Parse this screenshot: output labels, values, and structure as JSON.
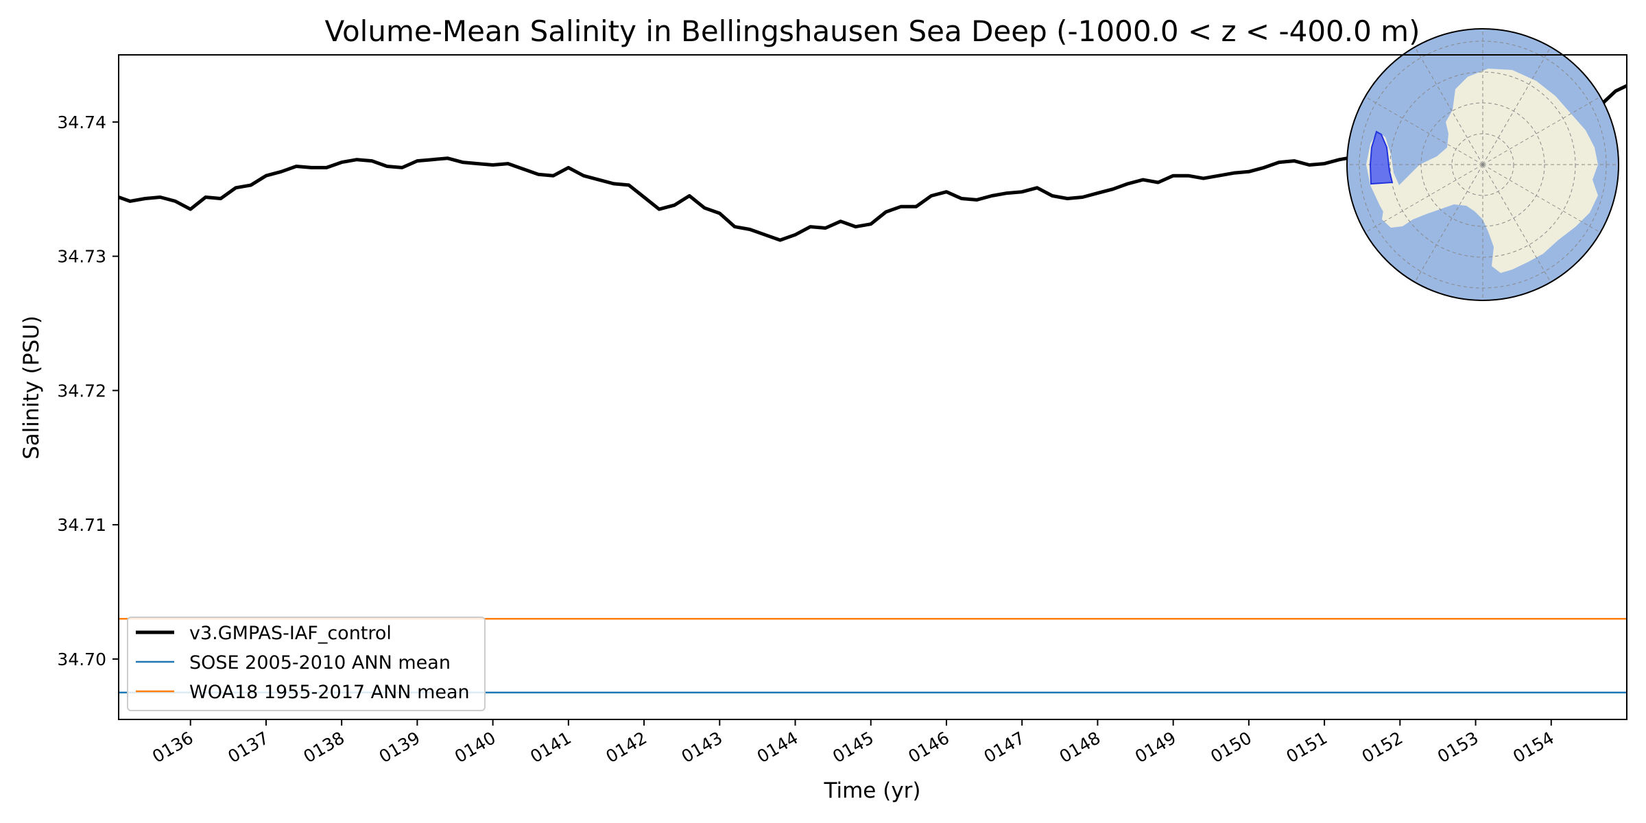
{
  "chart_data": {
    "type": "line",
    "title": "Volume-Mean Salinity in Bellingshausen Sea Deep (-1000.0 < z < -400.0 m)",
    "xlabel": "Time (yr)",
    "ylabel": "Salinity (PSU)",
    "xlim": [
      135.05,
      155.0
    ],
    "ylim": [
      34.6955,
      34.745
    ],
    "x_ticks": [
      136,
      137,
      138,
      139,
      140,
      141,
      142,
      143,
      144,
      145,
      146,
      147,
      148,
      149,
      150,
      151,
      152,
      153,
      154
    ],
    "x_tick_labels": [
      "0136",
      "0137",
      "0138",
      "0139",
      "0140",
      "0141",
      "0142",
      "0143",
      "0144",
      "0145",
      "0146",
      "0147",
      "0148",
      "0149",
      "0150",
      "0151",
      "0152",
      "0153",
      "0154"
    ],
    "y_ticks": [
      34.7,
      34.71,
      34.72,
      34.73,
      34.74
    ],
    "y_tick_labels": [
      "34.70",
      "34.71",
      "34.72",
      "34.73",
      "34.74"
    ],
    "grid": false,
    "legend_position": "bottom-left",
    "series": [
      {
        "name": "v3.GMPAS-IAF_control",
        "color": "#000000",
        "x": [
          135.05,
          135.2,
          135.4,
          135.6,
          135.8,
          136.0,
          136.2,
          136.4,
          136.6,
          136.8,
          137.0,
          137.2,
          137.4,
          137.6,
          137.8,
          138.0,
          138.2,
          138.4,
          138.6,
          138.8,
          139.0,
          139.2,
          139.4,
          139.6,
          139.8,
          140.0,
          140.2,
          140.4,
          140.6,
          140.8,
          141.0,
          141.2,
          141.4,
          141.6,
          141.8,
          142.0,
          142.2,
          142.4,
          142.6,
          142.8,
          143.0,
          143.2,
          143.4,
          143.6,
          143.8,
          144.0,
          144.2,
          144.4,
          144.6,
          144.8,
          145.0,
          145.2,
          145.4,
          145.6,
          145.8,
          146.0,
          146.2,
          146.4,
          146.6,
          146.8,
          147.0,
          147.2,
          147.4,
          147.6,
          147.8,
          148.0,
          148.2,
          148.4,
          148.6,
          148.8,
          149.0,
          149.2,
          149.4,
          149.6,
          149.8,
          150.0,
          150.2,
          150.4,
          150.6,
          150.8,
          151.0,
          151.2,
          151.4
        ],
        "values": [
          34.7344,
          34.7341,
          34.7343,
          34.7344,
          34.7341,
          34.7335,
          34.7344,
          34.7343,
          34.7351,
          34.7353,
          34.736,
          34.7363,
          34.7367,
          34.7366,
          34.7366,
          34.737,
          34.7372,
          34.7371,
          34.7367,
          34.7366,
          34.7371,
          34.7372,
          34.7373,
          34.737,
          34.7369,
          34.7368,
          34.7369,
          34.7365,
          34.7361,
          34.736,
          34.7366,
          34.736,
          34.7357,
          34.7354,
          34.7353,
          34.7344,
          34.7335,
          34.7338,
          34.7345,
          34.7336,
          34.7332,
          34.7322,
          34.732,
          34.7316,
          34.7312,
          34.7316,
          34.7322,
          34.7321,
          34.7326,
          34.7322,
          34.7324,
          34.7333,
          34.7337,
          34.7337,
          34.7345,
          34.7348,
          34.7343,
          34.7342,
          34.7345,
          34.7347,
          34.7348,
          34.7351,
          34.7345,
          34.7343,
          34.7344,
          34.7347,
          34.735,
          34.7354,
          34.7357,
          34.7355,
          34.736,
          34.736,
          34.7358,
          34.736,
          34.7362,
          34.7363,
          34.7366,
          34.737,
          34.7371,
          34.7368,
          34.7369,
          34.7372,
          34.7374
        ]
      },
      {
        "name": "v3.GMPAS-IAF_control",
        "color": "#000000",
        "x": [
          154.35,
          154.5,
          154.7,
          154.85,
          155.0
        ],
        "values": [
          34.738,
          34.7395,
          34.7415,
          34.7423,
          34.7427
        ]
      },
      {
        "name": "SOSE 2005-2010 ANN mean",
        "color": "#1f77b4",
        "x": [
          135.05,
          155.0
        ],
        "values": [
          34.6975,
          34.6975
        ]
      },
      {
        "name": "WOA18 1955-2017 ANN mean",
        "color": "#ff7f0e",
        "x": [
          135.05,
          155.0
        ],
        "values": [
          34.703,
          34.703
        ]
      }
    ],
    "inset_map": {
      "type": "south-polar-stereographic-map",
      "ocean_color": "#9bb8e3",
      "land_color": "#efeedc",
      "region_color": "#4e5ff0"
    }
  },
  "legend": [
    {
      "label": "v3.GMPAS-IAF_control",
      "color": "#000000"
    },
    {
      "label": "SOSE 2005-2010 ANN mean",
      "color": "#1f77b4"
    },
    {
      "label": "WOA18 1955-2017 ANN mean",
      "color": "#ff7f0e"
    }
  ]
}
